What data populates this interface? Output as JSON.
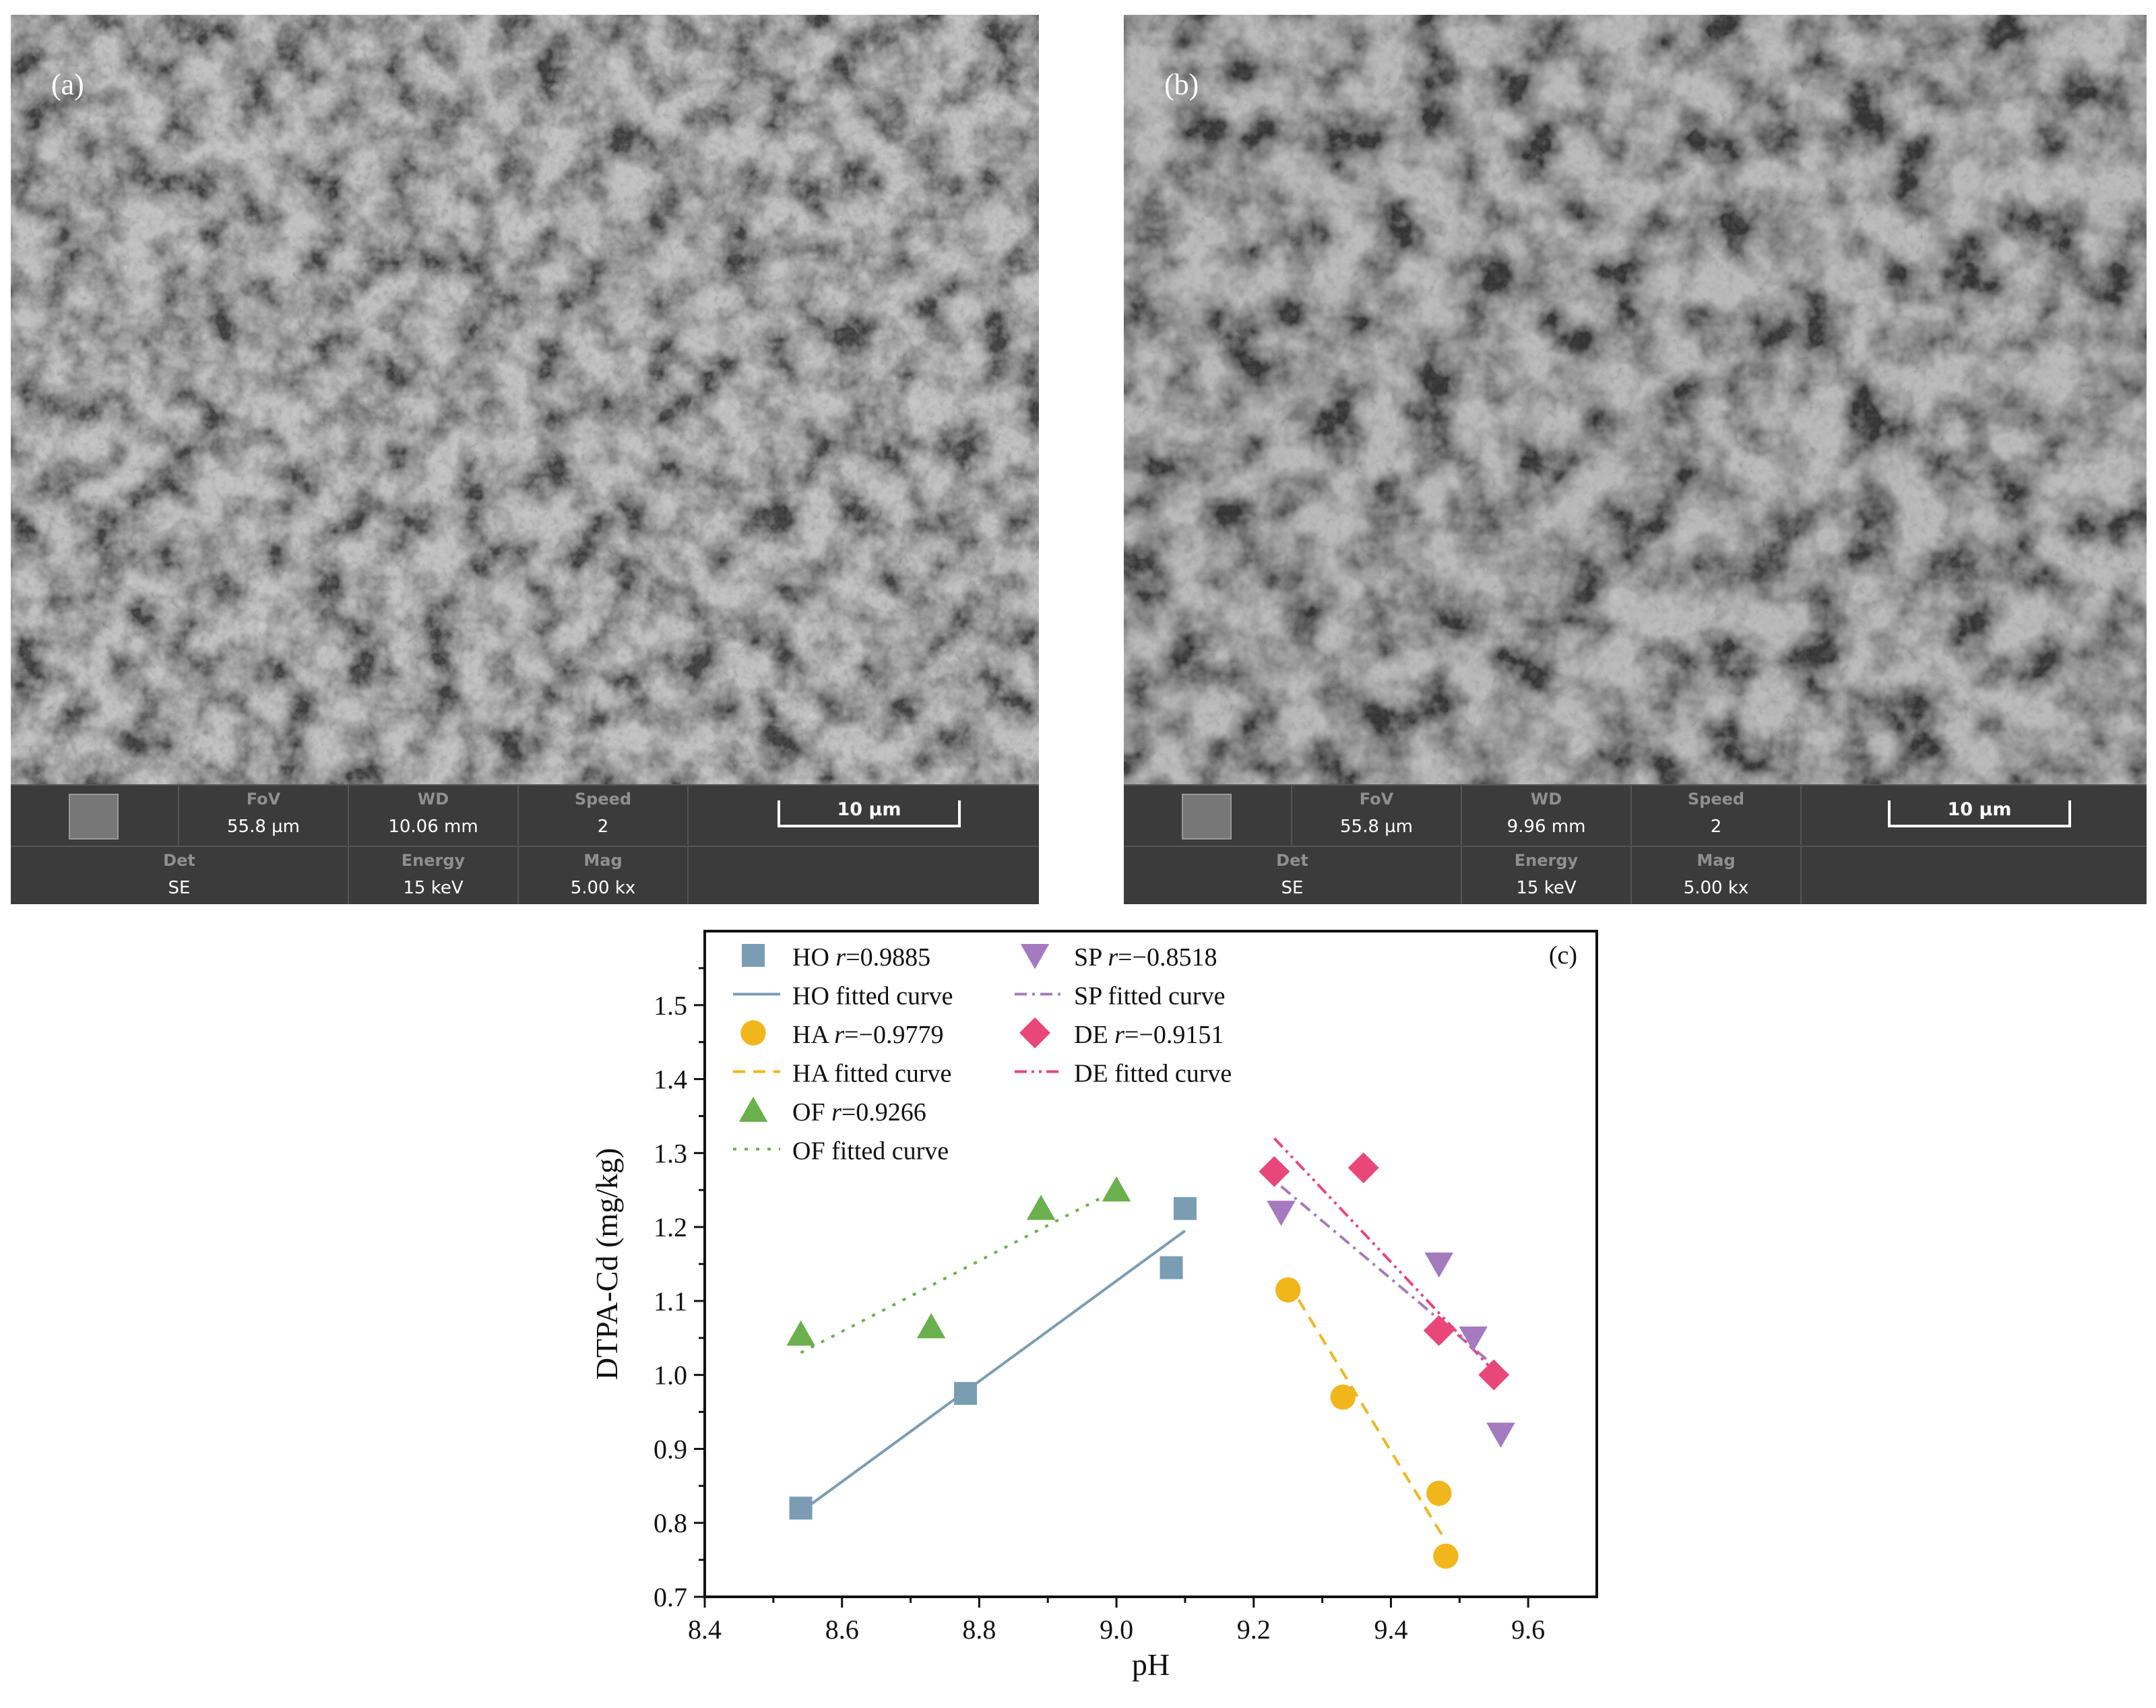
{
  "panels": {
    "a": {
      "label": "(a)",
      "row1": {
        "fov_k": "FoV",
        "fov_v": "55.8 µm",
        "wd_k": "WD",
        "wd_v": "10.06 mm",
        "speed_k": "Speed",
        "speed_v": "2",
        "scale": "10 µm"
      },
      "row2": {
        "det_k": "Det",
        "det_v": "SE",
        "energy_k": "Energy",
        "energy_v": "15 keV",
        "mag_k": "Mag",
        "mag_v": "5.00 kx"
      }
    },
    "b": {
      "label": "(b)",
      "row1": {
        "fov_k": "FoV",
        "fov_v": "55.8 µm",
        "wd_k": "WD",
        "wd_v": "9.96 mm",
        "speed_k": "Speed",
        "speed_v": "2",
        "scale": "10 µm"
      },
      "row2": {
        "det_k": "Det",
        "det_v": "SE",
        "energy_k": "Energy",
        "energy_v": "15 keV",
        "mag_k": "Mag",
        "mag_v": "5.00 kx"
      }
    }
  },
  "chart_data": {
    "type": "scatter",
    "panel_label": "(c)",
    "xlabel": "pH",
    "ylabel": "DTPA-Cd (mg/kg)",
    "xlim": [
      8.4,
      9.7
    ],
    "ylim": [
      0.7,
      1.6
    ],
    "xticks": [
      8.4,
      8.6,
      8.8,
      9.0,
      9.2,
      9.4,
      9.6
    ],
    "yticks": [
      0.7,
      0.8,
      0.9,
      1.0,
      1.1,
      1.2,
      1.3,
      1.4,
      1.5
    ],
    "legend_position": "top",
    "series": [
      {
        "name": "HO",
        "r_label": "r",
        "r_value": "=0.9885",
        "fit_label": "HO fitted curve",
        "color": "#7a9db3",
        "marker": "square",
        "line_style": "solid",
        "points": [
          [
            8.54,
            0.82
          ],
          [
            8.78,
            0.975
          ],
          [
            9.08,
            1.145
          ],
          [
            9.1,
            1.225
          ]
        ],
        "fit": [
          [
            8.54,
            0.815
          ],
          [
            9.1,
            1.195
          ]
        ]
      },
      {
        "name": "HA",
        "r_label": "r",
        "r_value": "=−0.9779",
        "fit_label": "HA fitted curve",
        "color": "#f2b61d",
        "marker": "circle",
        "line_style": "dashed",
        "points": [
          [
            9.25,
            1.115
          ],
          [
            9.33,
            0.97
          ],
          [
            9.47,
            0.84
          ],
          [
            9.48,
            0.755
          ]
        ],
        "fit": [
          [
            9.25,
            1.125
          ],
          [
            9.48,
            0.775
          ]
        ]
      },
      {
        "name": "OF",
        "r_label": "r",
        "r_value": "=0.9266",
        "fit_label": "OF fitted curve",
        "color": "#6ab04c",
        "marker": "triangle-up",
        "line_style": "dotted",
        "points": [
          [
            8.54,
            1.055
          ],
          [
            8.73,
            1.065
          ],
          [
            8.89,
            1.225
          ],
          [
            9.0,
            1.25
          ]
        ],
        "fit": [
          [
            8.54,
            1.03
          ],
          [
            9.0,
            1.25
          ]
        ]
      },
      {
        "name": "SP",
        "r_label": "r",
        "r_value": "=−0.8518",
        "fit_label": "SP fitted curve",
        "color": "#a57bbf",
        "marker": "triangle-down",
        "line_style": "dashdot",
        "points": [
          [
            9.24,
            1.22
          ],
          [
            9.47,
            1.15
          ],
          [
            9.52,
            1.05
          ],
          [
            9.56,
            0.92
          ]
        ],
        "fit": [
          [
            9.24,
            1.255
          ],
          [
            9.56,
            1.005
          ]
        ]
      },
      {
        "name": "DE",
        "r_label": "r",
        "r_value": "=−0.9151",
        "fit_label": "DE fitted curve",
        "color": "#e9467a",
        "marker": "diamond",
        "line_style": "dashdotdot",
        "points": [
          [
            9.23,
            1.275
          ],
          [
            9.36,
            1.28
          ],
          [
            9.47,
            1.06
          ],
          [
            9.55,
            1.0
          ]
        ],
        "fit": [
          [
            9.23,
            1.32
          ],
          [
            9.55,
            1.005
          ]
        ]
      }
    ]
  }
}
